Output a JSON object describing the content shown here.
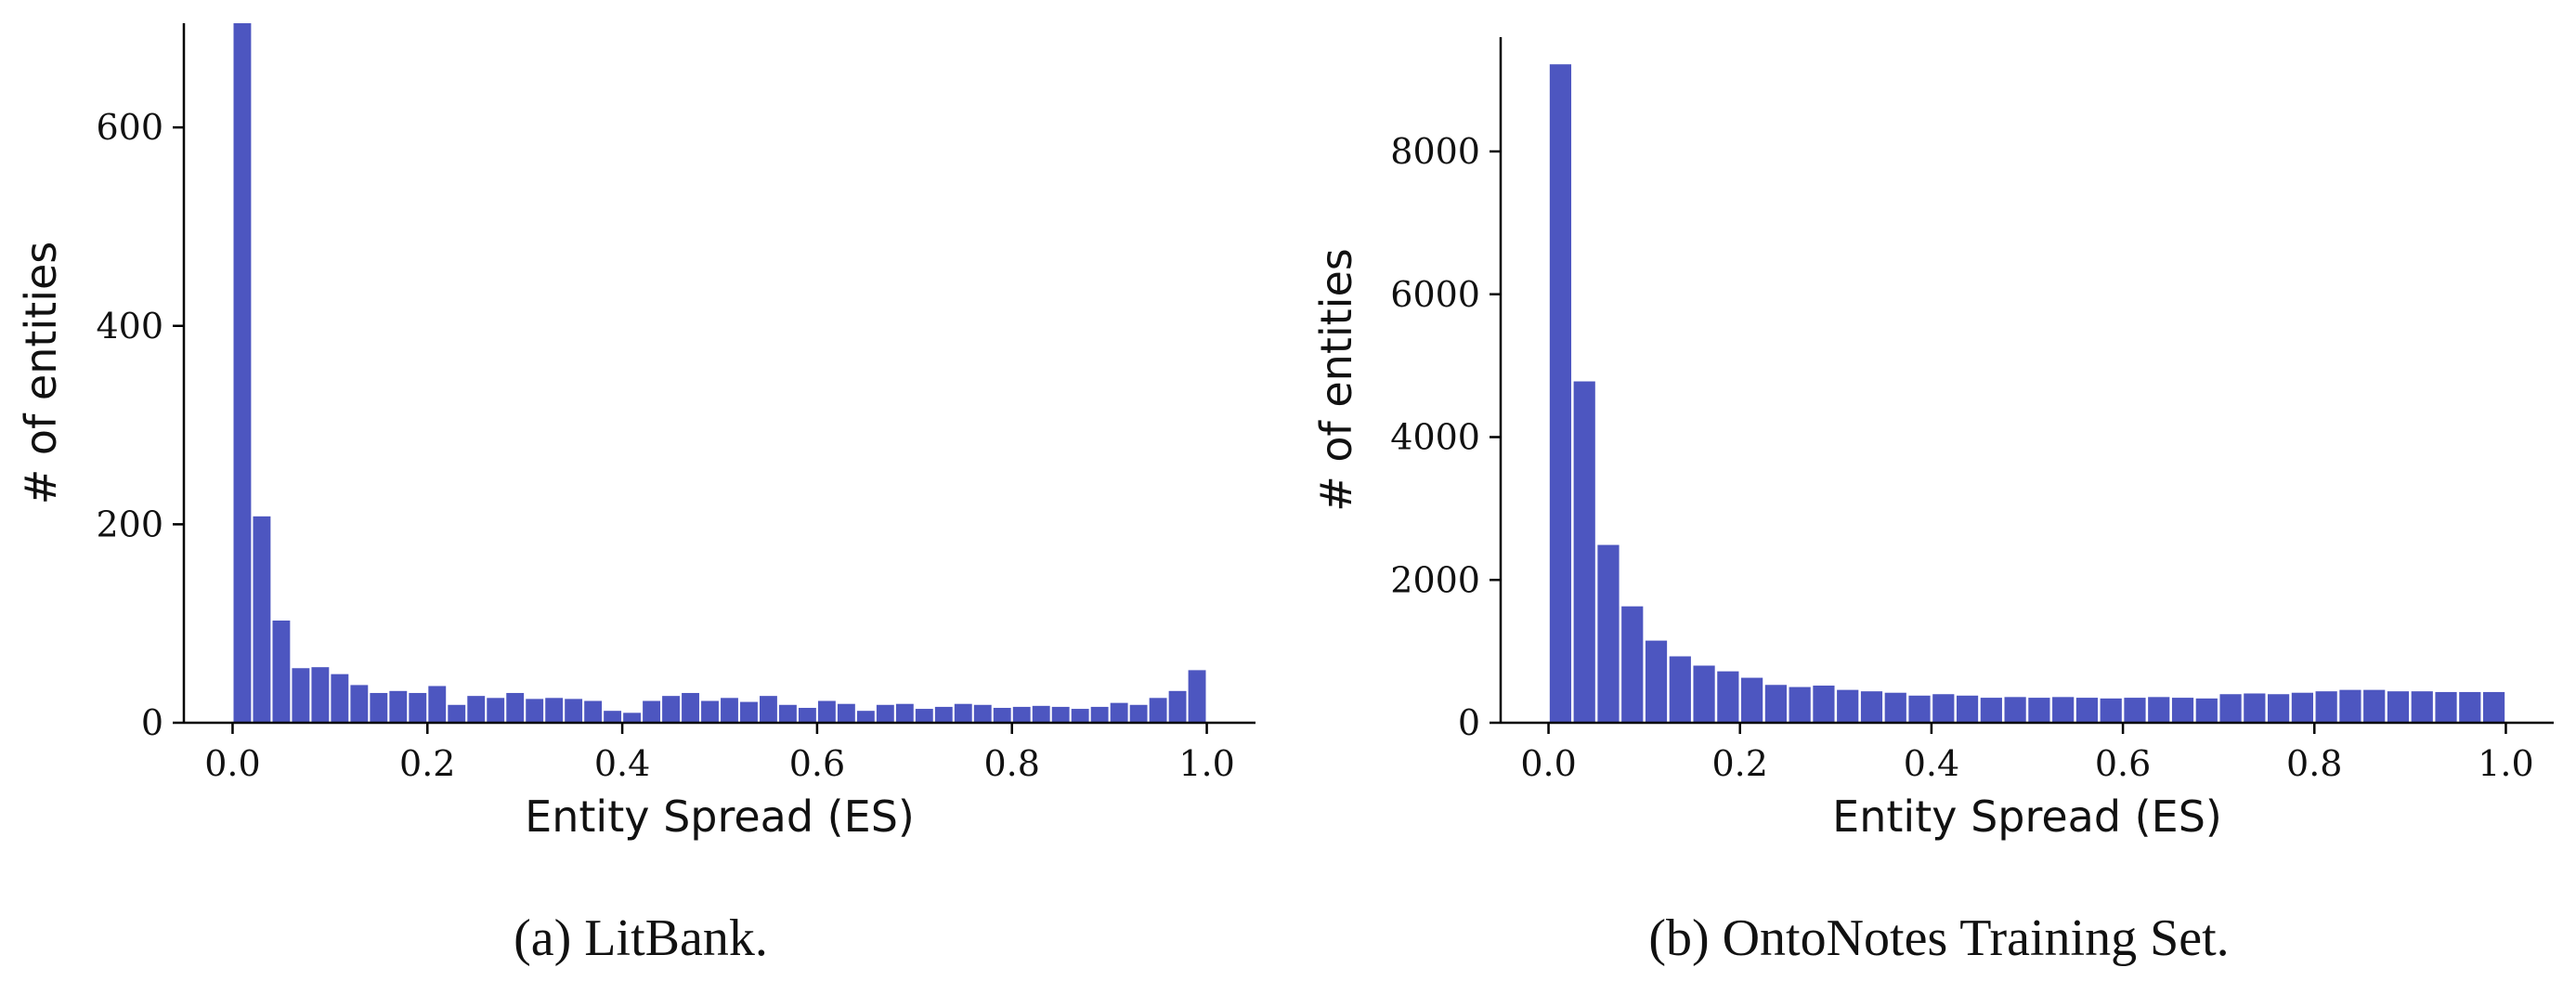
{
  "chart_data": [
    {
      "type": "bar",
      "caption": "(a) LitBank.",
      "xlabel": "Entity Spread (ES)",
      "ylabel": "# of entities",
      "xlim": [
        -0.05,
        1.05
      ],
      "ylim": [
        0,
        705
      ],
      "xticks": [
        "0.0",
        "0.2",
        "0.4",
        "0.6",
        "0.8",
        "1.0"
      ],
      "yticks": [
        "0",
        "200",
        "400",
        "600"
      ],
      "grid": false,
      "bin_width": 0.02,
      "values": [
        705,
        208,
        103,
        55,
        56,
        49,
        38,
        30,
        32,
        30,
        37,
        18,
        27,
        25,
        30,
        24,
        25,
        24,
        22,
        12,
        10,
        22,
        27,
        30,
        22,
        25,
        21,
        27,
        18,
        15,
        22,
        19,
        12,
        18,
        19,
        14,
        16,
        19,
        18,
        15,
        16,
        17,
        16,
        14,
        16,
        20,
        18,
        25,
        32,
        53
      ]
    },
    {
      "type": "bar",
      "caption": "(b) OntoNotes Training Set.",
      "xlabel": "Entity Spread (ES)",
      "ylabel": "# of entities",
      "xlim": [
        -0.05,
        1.05
      ],
      "ylim": [
        0,
        9600
      ],
      "xticks": [
        "0.0",
        "0.2",
        "0.4",
        "0.6",
        "0.8",
        "1.0"
      ],
      "yticks": [
        "0",
        "2000",
        "4000",
        "6000",
        "8000"
      ],
      "grid": false,
      "bin_width": 0.025,
      "values": [
        9220,
        4780,
        2490,
        1630,
        1150,
        930,
        800,
        720,
        630,
        530,
        500,
        520,
        460,
        440,
        420,
        380,
        400,
        380,
        350,
        360,
        350,
        360,
        350,
        340,
        350,
        360,
        350,
        340,
        400,
        410,
        400,
        420,
        440,
        460,
        460,
        440,
        440,
        430,
        430,
        430
      ]
    }
  ]
}
